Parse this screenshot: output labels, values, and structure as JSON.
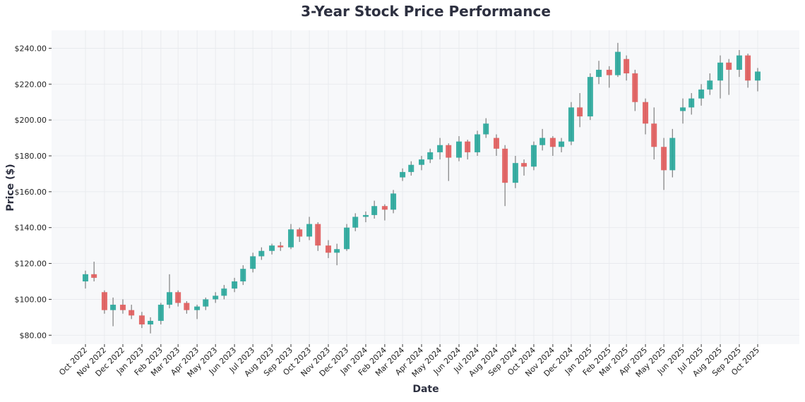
{
  "chart_data": {
    "type": "candlestick",
    "title": "3-Year Stock Price Performance",
    "xlabel": "Date",
    "ylabel": "Price ($)",
    "ylim": [
      75,
      250
    ],
    "xlim": [
      "2022-09-20",
      "2025-11-15"
    ],
    "grid": true,
    "legend": "none",
    "colors": {
      "up": "#26a69a",
      "down": "#e05a5a",
      "background": "#f7f8fa",
      "grid": "#e6e8ec",
      "title": "#2d3040"
    },
    "yticks": [
      80,
      100,
      120,
      140,
      160,
      180,
      200,
      220,
      240
    ],
    "ytick_labels": [
      "$80.00",
      "$100.00",
      "$120.00",
      "$140.00",
      "$160.00",
      "$180.00",
      "$200.00",
      "$220.00",
      "$240.00"
    ],
    "xticks": [
      "2022-10-01",
      "2022-11-01",
      "2022-12-01",
      "2023-01-01",
      "2023-02-01",
      "2023-03-01",
      "2023-04-01",
      "2023-05-01",
      "2023-06-01",
      "2023-07-01",
      "2023-08-01",
      "2023-09-01",
      "2023-10-01",
      "2023-11-01",
      "2023-12-01",
      "2024-01-01",
      "2024-02-01",
      "2024-03-01",
      "2024-04-01",
      "2024-05-01",
      "2024-06-01",
      "2024-07-01",
      "2024-08-01",
      "2024-09-01",
      "2024-10-01",
      "2024-11-01",
      "2024-12-01",
      "2025-01-01",
      "2025-02-01",
      "2025-03-01",
      "2025-04-01",
      "2025-05-01",
      "2025-06-01",
      "2025-07-01",
      "2025-08-01",
      "2025-09-01",
      "2025-10-01"
    ],
    "xtick_labels": [
      "Oct 2022",
      "Nov 2022",
      "Dec 2022",
      "Jan 2023",
      "Feb 2023",
      "Mar 2023",
      "Apr 2023",
      "May 2023",
      "Jun 2023",
      "Jul 2023",
      "Aug 2023",
      "Sep 2023",
      "Oct 2023",
      "Nov 2023",
      "Dec 2023",
      "Jan 2024",
      "Feb 2024",
      "Mar 2024",
      "Apr 2024",
      "May 2024",
      "Jun 2024",
      "Jul 2024",
      "Aug 2024",
      "Sep 2024",
      "Oct 2024",
      "Nov 2024",
      "Dec 2024",
      "Jan 2025",
      "Feb 2025",
      "Mar 2025",
      "Apr 2025",
      "May 2025",
      "Jun 2025",
      "Jul 2025",
      "Aug 2025",
      "Sep 2025",
      "Oct 2025"
    ],
    "candles_fields": [
      "date",
      "open",
      "high",
      "low",
      "close"
    ],
    "candles": [
      [
        "2022-10-01",
        110,
        116,
        106,
        114
      ],
      [
        "2022-10-15",
        114,
        121,
        110,
        112
      ],
      [
        "2022-11-01",
        104,
        105,
        92,
        94
      ],
      [
        "2022-11-15",
        94,
        101,
        85,
        97
      ],
      [
        "2022-12-01",
        97,
        100,
        92,
        94
      ],
      [
        "2022-12-15",
        94,
        97,
        89,
        91
      ],
      [
        "2023-01-01",
        91,
        93,
        84,
        86
      ],
      [
        "2023-01-15",
        86,
        90,
        81,
        88
      ],
      [
        "2023-02-01",
        88,
        98,
        86,
        97
      ],
      [
        "2023-02-15",
        97,
        114,
        95,
        104
      ],
      [
        "2023-03-01",
        104,
        105,
        96,
        98
      ],
      [
        "2023-03-15",
        98,
        99,
        92,
        94
      ],
      [
        "2023-04-01",
        94,
        97,
        89,
        96
      ],
      [
        "2023-04-15",
        96,
        101,
        94,
        100
      ],
      [
        "2023-05-01",
        100,
        104,
        98,
        102
      ],
      [
        "2023-05-15",
        102,
        108,
        100,
        106
      ],
      [
        "2023-06-01",
        106,
        112,
        104,
        110
      ],
      [
        "2023-06-15",
        110,
        119,
        108,
        117
      ],
      [
        "2023-07-01",
        117,
        126,
        115,
        124
      ],
      [
        "2023-07-15",
        124,
        129,
        122,
        127
      ],
      [
        "2023-08-01",
        127,
        131,
        125,
        130
      ],
      [
        "2023-08-15",
        130,
        132,
        127,
        129
      ],
      [
        "2023-09-01",
        129,
        142,
        128,
        139
      ],
      [
        "2023-09-15",
        139,
        140,
        132,
        135
      ],
      [
        "2023-10-01",
        135,
        146,
        133,
        142
      ],
      [
        "2023-10-15",
        142,
        143,
        127,
        130
      ],
      [
        "2023-11-01",
        130,
        133,
        123,
        126
      ],
      [
        "2023-11-15",
        126,
        131,
        119,
        128
      ],
      [
        "2023-12-01",
        128,
        142,
        127,
        140
      ],
      [
        "2023-12-15",
        140,
        148,
        138,
        146
      ],
      [
        "2024-01-01",
        146,
        149,
        143,
        147
      ],
      [
        "2024-01-15",
        147,
        155,
        145,
        152
      ],
      [
        "2024-02-01",
        152,
        153,
        144,
        150
      ],
      [
        "2024-02-15",
        150,
        161,
        148,
        159
      ],
      [
        "2024-03-01",
        168,
        173,
        166,
        171
      ],
      [
        "2024-03-15",
        171,
        177,
        169,
        175
      ],
      [
        "2024-04-01",
        175,
        180,
        172,
        178
      ],
      [
        "2024-04-15",
        178,
        184,
        176,
        182
      ],
      [
        "2024-05-01",
        182,
        190,
        178,
        186
      ],
      [
        "2024-05-15",
        186,
        187,
        166,
        179
      ],
      [
        "2024-06-01",
        179,
        191,
        177,
        188
      ],
      [
        "2024-06-15",
        188,
        189,
        178,
        182
      ],
      [
        "2024-07-01",
        182,
        194,
        180,
        192
      ],
      [
        "2024-07-15",
        192,
        201,
        190,
        198
      ],
      [
        "2024-08-01",
        190,
        192,
        180,
        184
      ],
      [
        "2024-08-15",
        184,
        186,
        152,
        165
      ],
      [
        "2024-09-01",
        165,
        180,
        162,
        176
      ],
      [
        "2024-09-15",
        176,
        178,
        169,
        174
      ],
      [
        "2024-10-01",
        174,
        188,
        172,
        186
      ],
      [
        "2024-10-15",
        186,
        195,
        183,
        190
      ],
      [
        "2024-11-01",
        190,
        191,
        180,
        185
      ],
      [
        "2024-11-15",
        185,
        190,
        182,
        188
      ],
      [
        "2024-12-01",
        188,
        210,
        186,
        207
      ],
      [
        "2024-12-15",
        207,
        215,
        196,
        202
      ],
      [
        "2025-01-01",
        202,
        226,
        200,
        224
      ],
      [
        "2025-01-15",
        224,
        233,
        220,
        228
      ],
      [
        "2025-02-01",
        228,
        230,
        218,
        225
      ],
      [
        "2025-02-15",
        225,
        243,
        224,
        238
      ],
      [
        "2025-03-01",
        234,
        236,
        222,
        226
      ],
      [
        "2025-03-15",
        226,
        228,
        205,
        210
      ],
      [
        "2025-04-01",
        210,
        212,
        192,
        198
      ],
      [
        "2025-04-15",
        198,
        207,
        178,
        185
      ],
      [
        "2025-05-01",
        185,
        190,
        161,
        172
      ],
      [
        "2025-05-15",
        172,
        195,
        168,
        190
      ],
      [
        "2025-06-01",
        205,
        212,
        198,
        207
      ],
      [
        "2025-06-15",
        207,
        215,
        203,
        212
      ],
      [
        "2025-07-01",
        212,
        220,
        208,
        217
      ],
      [
        "2025-07-15",
        217,
        226,
        214,
        222
      ],
      [
        "2025-08-01",
        222,
        236,
        212,
        232
      ],
      [
        "2025-08-15",
        232,
        234,
        214,
        228
      ],
      [
        "2025-09-01",
        228,
        239,
        224,
        236
      ],
      [
        "2025-09-15",
        236,
        237,
        218,
        222
      ],
      [
        "2025-10-01",
        222,
        229,
        216,
        227
      ]
    ]
  }
}
